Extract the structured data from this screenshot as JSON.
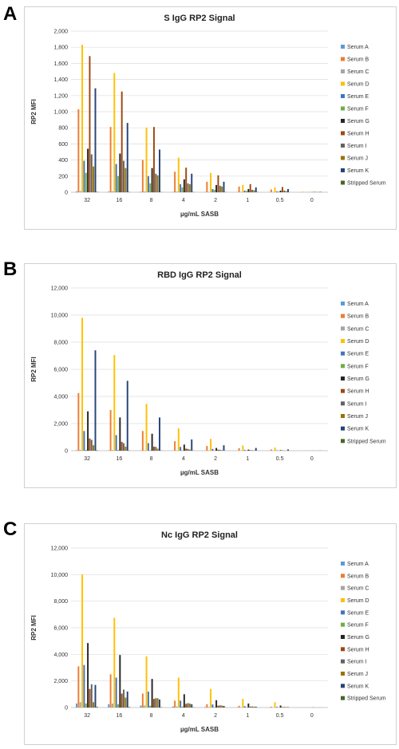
{
  "panels": [
    {
      "letter": "A"
    },
    {
      "letter": "B"
    },
    {
      "letter": "C"
    }
  ],
  "chart_data": [
    {
      "type": "bar",
      "title": "S IgG RP2 Signal",
      "xlabel": "µg/mL SASB",
      "ylabel": "RP2 MFI",
      "ylim": [
        0,
        2000
      ],
      "yticks": [
        0,
        200,
        400,
        600,
        800,
        1000,
        1200,
        1400,
        1600,
        1800,
        2000
      ],
      "ytick_labels": [
        "0",
        "200",
        "400",
        "600",
        "800",
        "1,000",
        "1,200",
        "1,400",
        "1,600",
        "1,800",
        "2,000"
      ],
      "grid": true,
      "legend_position": "right",
      "categories": [
        "32",
        "16",
        "8",
        "4",
        "2",
        "1",
        "0.5",
        "0"
      ],
      "series": [
        {
          "name": "Serum A",
          "color": "#5B9BD5",
          "values": [
            10,
            8,
            6,
            4,
            3,
            2,
            2,
            1
          ]
        },
        {
          "name": "Serum B",
          "color": "#ED7D31",
          "values": [
            1030,
            810,
            400,
            255,
            130,
            70,
            35,
            5
          ]
        },
        {
          "name": "Serum C",
          "color": "#A5A5A5",
          "values": [
            15,
            12,
            10,
            8,
            5,
            3,
            2,
            1
          ]
        },
        {
          "name": "Serum D",
          "color": "#FFC000",
          "values": [
            1830,
            1480,
            800,
            430,
            240,
            90,
            60,
            5
          ]
        },
        {
          "name": "Serum E",
          "color": "#4472C4",
          "values": [
            390,
            350,
            200,
            100,
            40,
            20,
            10,
            2
          ]
        },
        {
          "name": "Serum F",
          "color": "#70AD47",
          "values": [
            240,
            200,
            110,
            60,
            30,
            15,
            8,
            2
          ]
        },
        {
          "name": "Serum G",
          "color": "#262626",
          "values": [
            540,
            480,
            300,
            160,
            90,
            40,
            20,
            2
          ]
        },
        {
          "name": "Serum H",
          "color": "#9E480E",
          "values": [
            1690,
            1250,
            810,
            305,
            210,
            100,
            65,
            5
          ]
        },
        {
          "name": "Serum I",
          "color": "#636363",
          "values": [
            470,
            390,
            230,
            110,
            80,
            30,
            20,
            3
          ]
        },
        {
          "name": "Serum J",
          "color": "#997300",
          "values": [
            320,
            300,
            210,
            100,
            70,
            25,
            15,
            2
          ]
        },
        {
          "name": "Serum K",
          "color": "#264478",
          "values": [
            1290,
            860,
            530,
            230,
            130,
            60,
            40,
            5
          ]
        },
        {
          "name": "Stripped Serum",
          "color": "#43682B",
          "values": [
            5,
            4,
            3,
            3,
            2,
            2,
            1,
            1
          ]
        }
      ]
    },
    {
      "type": "bar",
      "title": "RBD IgG RP2 Signal",
      "xlabel": "µg/mL SASB",
      "ylabel": "RP2 MFI",
      "ylim": [
        0,
        12000
      ],
      "yticks": [
        0,
        2000,
        4000,
        6000,
        8000,
        10000,
        12000
      ],
      "ytick_labels": [
        "0",
        "2,000",
        "4,000",
        "6,000",
        "8,000",
        "10,000",
        "12,000"
      ],
      "grid": true,
      "legend_position": "right",
      "categories": [
        "32",
        "16",
        "8",
        "4",
        "2",
        "1",
        "0.5",
        "0"
      ],
      "series": [
        {
          "name": "Serum A",
          "color": "#5B9BD5",
          "values": [
            30,
            20,
            15,
            10,
            5,
            3,
            2,
            1
          ]
        },
        {
          "name": "Serum B",
          "color": "#ED7D31",
          "values": [
            4250,
            3000,
            1450,
            700,
            350,
            180,
            90,
            5
          ]
        },
        {
          "name": "Serum C",
          "color": "#A5A5A5",
          "values": [
            60,
            50,
            30,
            20,
            10,
            5,
            3,
            2
          ]
        },
        {
          "name": "Serum D",
          "color": "#FFC000",
          "values": [
            9800,
            7050,
            3450,
            1650,
            870,
            380,
            230,
            10
          ]
        },
        {
          "name": "Serum E",
          "color": "#4472C4",
          "values": [
            1450,
            1150,
            560,
            280,
            130,
            60,
            30,
            5
          ]
        },
        {
          "name": "Serum F",
          "color": "#70AD47",
          "values": [
            60,
            50,
            30,
            20,
            10,
            5,
            3,
            2
          ]
        },
        {
          "name": "Serum G",
          "color": "#262626",
          "values": [
            2900,
            2450,
            1250,
            450,
            200,
            80,
            40,
            5
          ]
        },
        {
          "name": "Serum H",
          "color": "#9E480E",
          "values": [
            900,
            650,
            300,
            150,
            80,
            40,
            20,
            3
          ]
        },
        {
          "name": "Serum I",
          "color": "#636363",
          "values": [
            800,
            550,
            280,
            130,
            60,
            30,
            15,
            3
          ]
        },
        {
          "name": "Serum J",
          "color": "#997300",
          "values": [
            400,
            300,
            150,
            80,
            40,
            20,
            10,
            2
          ]
        },
        {
          "name": "Serum K",
          "color": "#264478",
          "values": [
            7400,
            5150,
            2450,
            830,
            400,
            200,
            90,
            10
          ]
        },
        {
          "name": "Stripped Serum",
          "color": "#43682B",
          "values": [
            30,
            20,
            15,
            10,
            5,
            3,
            2,
            1
          ]
        }
      ]
    },
    {
      "type": "bar",
      "title": "Nc IgG RP2 Signal",
      "xlabel": "µg/mL SASB",
      "ylabel": "RP2 MFI",
      "ylim": [
        0,
        12000
      ],
      "yticks": [
        0,
        2000,
        4000,
        6000,
        8000,
        10000,
        12000
      ],
      "ytick_labels": [
        "0",
        "2,000",
        "4,000",
        "6,000",
        "8,000",
        "10,000",
        "12,000"
      ],
      "grid": true,
      "legend_position": "right",
      "categories": [
        "32",
        "16",
        "8",
        "4",
        "2",
        "1",
        "0.5",
        "0"
      ],
      "series": [
        {
          "name": "Serum A",
          "color": "#5B9BD5",
          "values": [
            300,
            250,
            150,
            80,
            40,
            20,
            10,
            3
          ]
        },
        {
          "name": "Serum B",
          "color": "#ED7D31",
          "values": [
            3100,
            2500,
            1050,
            520,
            250,
            130,
            60,
            5
          ]
        },
        {
          "name": "Serum C",
          "color": "#A5A5A5",
          "values": [
            400,
            300,
            150,
            80,
            40,
            20,
            10,
            3
          ]
        },
        {
          "name": "Serum D",
          "color": "#FFC000",
          "values": [
            10000,
            6750,
            3850,
            2250,
            1400,
            650,
            400,
            20
          ]
        },
        {
          "name": "Serum E",
          "color": "#4472C4",
          "values": [
            3200,
            2250,
            1200,
            520,
            230,
            100,
            50,
            5
          ]
        },
        {
          "name": "Serum F",
          "color": "#70AD47",
          "values": [
            300,
            250,
            130,
            70,
            35,
            15,
            8,
            2
          ]
        },
        {
          "name": "Serum G",
          "color": "#262626",
          "values": [
            4850,
            3950,
            2150,
            1000,
            550,
            300,
            150,
            10
          ]
        },
        {
          "name": "Serum H",
          "color": "#9E480E",
          "values": [
            1400,
            1050,
            650,
            280,
            140,
            70,
            35,
            5
          ]
        },
        {
          "name": "Serum I",
          "color": "#636363",
          "values": [
            1750,
            1350,
            700,
            330,
            160,
            80,
            40,
            5
          ]
        },
        {
          "name": "Serum J",
          "color": "#997300",
          "values": [
            400,
            750,
            700,
            300,
            150,
            70,
            35,
            5
          ]
        },
        {
          "name": "Serum K",
          "color": "#264478",
          "values": [
            1700,
            1200,
            600,
            250,
            120,
            60,
            30,
            5
          ]
        },
        {
          "name": "Stripped Serum",
          "color": "#43682B",
          "values": [
            50,
            40,
            30,
            20,
            10,
            5,
            3,
            2
          ]
        }
      ]
    }
  ]
}
